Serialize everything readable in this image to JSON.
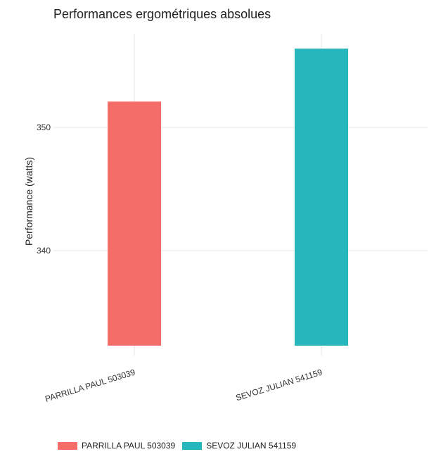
{
  "chart_data": {
    "type": "bar",
    "title": "Performances ergométriques absolues",
    "xlabel": "",
    "ylabel": "Performance (watts)",
    "categories": [
      "PARRILLA PAUL 503039",
      "SEVOZ JULIAN 541159"
    ],
    "values": [
      352.1,
      356.4
    ],
    "colors": [
      "#F46D69",
      "#27B6BB"
    ],
    "ylim": [
      331.5,
      357.6
    ],
    "bar_base": 332.3,
    "yticks": [
      340,
      350
    ],
    "grid": true,
    "legend": {
      "position": "bottom",
      "entries": [
        "PARRILLA PAUL 503039",
        "SEVOZ JULIAN 541159"
      ]
    }
  }
}
